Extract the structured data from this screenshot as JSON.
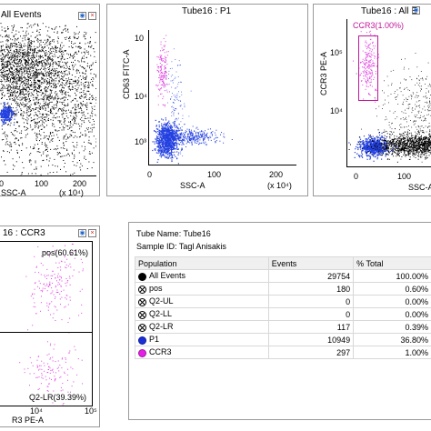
{
  "colors": {
    "gate": "#c0189a",
    "p1": "#2340e0",
    "ccr3": "#e040e0",
    "events": "#000000"
  },
  "plot1": {
    "title": "All Events",
    "x_ticks": [
      "0",
      "100",
      "200"
    ],
    "x_label": "SSC-A",
    "x_exp": "(x 10⁴)"
  },
  "plot2": {
    "title": "Tube16 : P1",
    "y_label": "CD63 FITC-A",
    "y_ticks": [
      "10⁴",
      "10³"
    ],
    "y_top_tick": "10",
    "x_ticks": [
      "0",
      "100",
      "200"
    ],
    "x_label": "SSC-A",
    "x_exp": "(x 10⁴)"
  },
  "plot3": {
    "title": "Tube16 : All E",
    "y_label": "CCR3 PE-A",
    "y_ticks": [
      "10⁵",
      "10⁴"
    ],
    "x_ticks": [
      "0",
      "100"
    ],
    "x_label": "SSC-A",
    "gate_label": "CCR3(1.00%)"
  },
  "plot4": {
    "title": "16 : CCR3",
    "gate_pos": "pos(60.61%)",
    "gate_lr": "Q2-LR(39.39%)",
    "x_ticks": [
      "10⁴",
      "10⁵"
    ],
    "x_label": "R3 PE-A"
  },
  "stats": {
    "tube_name_label": "Tube Name:",
    "tube_name": "Tube16",
    "sample_id_label": "Sample ID:",
    "sample_id": "Tagl Anisakis",
    "columns": [
      "Population",
      "Events",
      "% Total"
    ],
    "rows": [
      {
        "symbol": "fill-black",
        "population": "All Events",
        "events": "29754",
        "total": "100.00%"
      },
      {
        "symbol": "xcirc",
        "population": "pos",
        "events": "180",
        "total": "0.60%"
      },
      {
        "symbol": "xcirc",
        "population": "Q2-UL",
        "events": "0",
        "total": "0.00%"
      },
      {
        "symbol": "xcirc",
        "population": "Q2-LL",
        "events": "0",
        "total": "0.00%"
      },
      {
        "symbol": "xcirc",
        "population": "Q2-LR",
        "events": "117",
        "total": "0.39%"
      },
      {
        "symbol": "fill-blue",
        "population": "P1",
        "events": "10949",
        "total": "36.80%"
      },
      {
        "symbol": "fill-magenta",
        "population": "CCR3",
        "events": "297",
        "total": "1.00%"
      }
    ]
  }
}
